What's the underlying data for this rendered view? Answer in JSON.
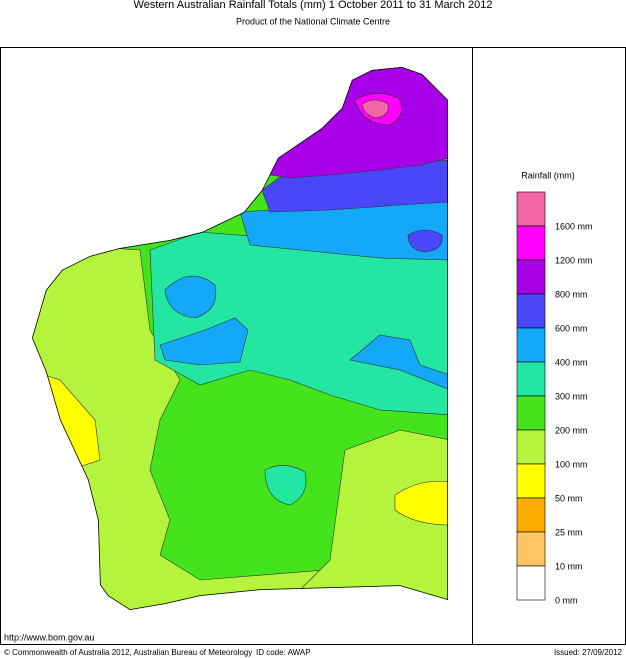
{
  "header": {
    "title": "Western Australian Rainfall Totals (mm) 1 October 2011 to 31 March 2012",
    "subtitle": "Product of the National Climate Centre"
  },
  "legend": {
    "title": "Rainfall (mm)",
    "colors": [
      "#f566a8",
      "#ff00ff",
      "#a800e8",
      "#4848f8",
      "#14a8f8",
      "#22e6a2",
      "#44e41c",
      "#b4f43c",
      "#ffff00",
      "#ffaa00",
      "#ffc464",
      "#ffffff"
    ],
    "labels": [
      "1600 mm",
      "1200 mm",
      "800 mm",
      "600 mm",
      "400 mm",
      "300 mm",
      "200 mm",
      "100 mm",
      "50 mm",
      "25 mm",
      "10 mm",
      "0 mm"
    ]
  },
  "footer": {
    "url": "http://www.bom.gov.au",
    "copyright": "© Commonwealth of Australia 2012, Australian Bureau of Meteorology",
    "id_code": "ID code: AWAP",
    "issued": "Issued: 27/09/2012"
  }
}
